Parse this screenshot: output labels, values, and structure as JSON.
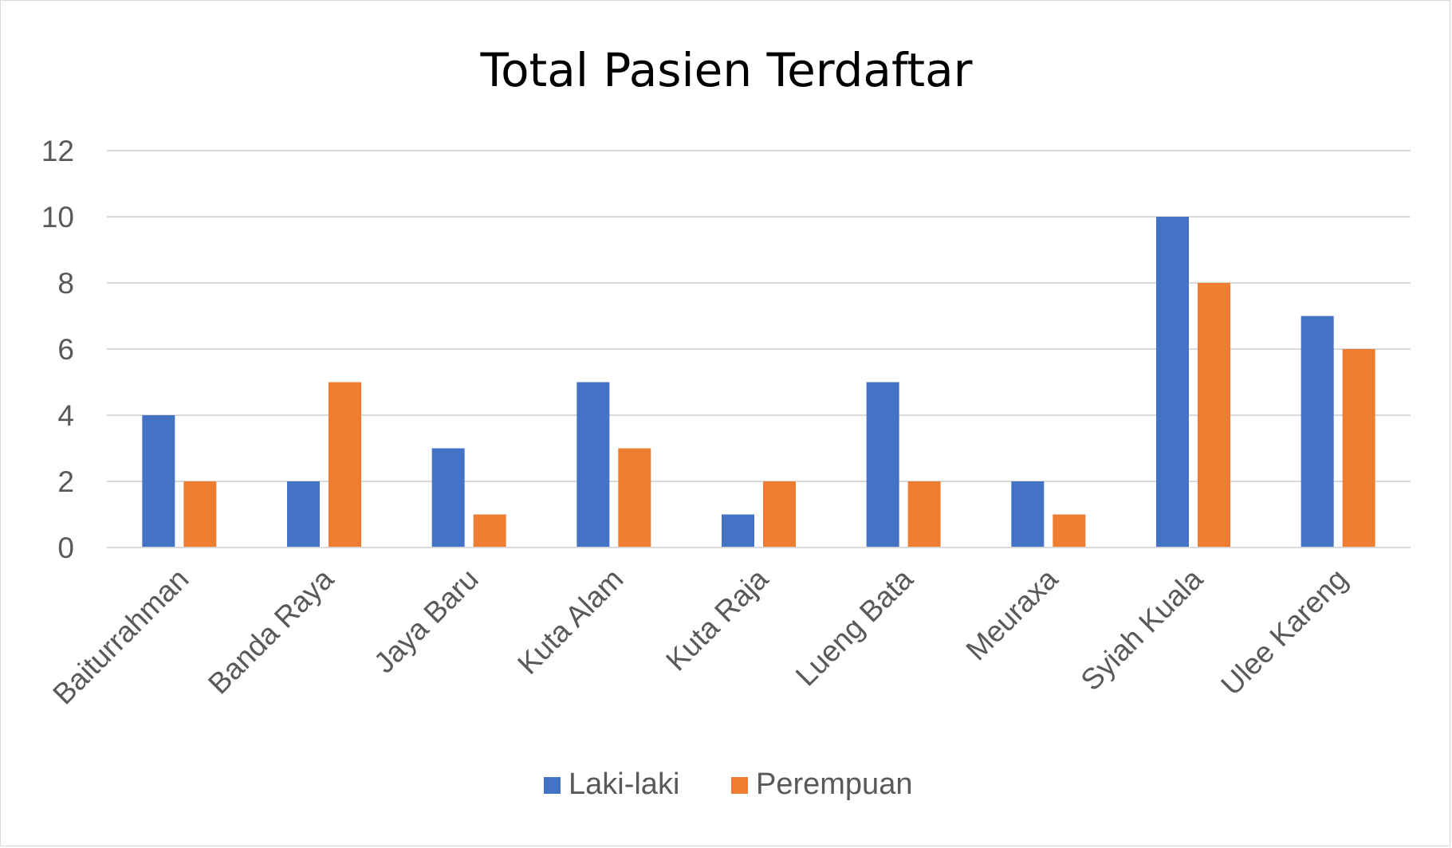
{
  "chart_data": {
    "type": "bar",
    "title": "Total Pasien Terdaftar",
    "xlabel": "",
    "ylabel": "",
    "categories": [
      "Baiturrahman",
      "Banda Raya",
      "Jaya Baru",
      "Kuta Alam",
      "Kuta Raja",
      "Lueng Bata",
      "Meuraxa",
      "Syiah Kuala",
      "Ulee Kareng"
    ],
    "series": [
      {
        "name": "Laki-laki",
        "color": "#4472c4",
        "values": [
          4,
          2,
          3,
          5,
          1,
          5,
          2,
          10,
          7
        ]
      },
      {
        "name": "Perempuan",
        "color": "#ed7d31",
        "values": [
          2,
          5,
          1,
          3,
          2,
          2,
          1,
          8,
          6
        ]
      }
    ],
    "ylim": [
      0,
      12
    ],
    "yticks": [
      0,
      2,
      4,
      6,
      8,
      10,
      12
    ],
    "grid": true,
    "gridColor": "#d9d9d9",
    "legend": "bottom-center"
  }
}
